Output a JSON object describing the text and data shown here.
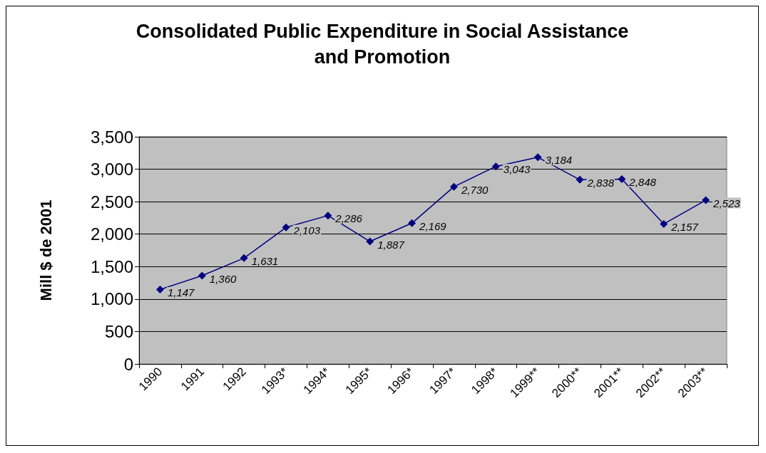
{
  "chart_data": {
    "type": "line",
    "title": "Consolidated Public Expenditure in Social Assistance\nand Promotion",
    "ylabel": "Mill $ de 2001",
    "categories": [
      "1990",
      "1991",
      "1992",
      "1993*",
      "1994*",
      "1995*",
      "1996*",
      "1997*",
      "1998*",
      "1999**",
      "2000**",
      "2001**",
      "2002**",
      "2003**"
    ],
    "series": [
      {
        "color": "#000080",
        "values": [
          1147,
          1360,
          1631,
          2103,
          2286,
          1887,
          2169,
          2730,
          3043,
          3184,
          2838,
          2848,
          2157,
          2523
        ],
        "value_labels": [
          "1,147",
          "1,360",
          "1,631",
          "2,103",
          "2,286",
          "1,887",
          "2,169",
          "2,730",
          "3,043",
          "3,184",
          "2,838",
          "2,848",
          "2,157",
          "2,523"
        ]
      }
    ],
    "ylim": [
      0,
      3500
    ],
    "yticks": [
      0,
      {
        "value": 500,
        "label": "500"
      },
      {
        "value": 1000,
        "label": "1,000"
      },
      {
        "value": 1500,
        "label": "1,500"
      },
      {
        "value": 2000,
        "label": "2,000"
      },
      {
        "value": 2500,
        "label": "2,500"
      },
      {
        "value": 3000,
        "label": "3,000"
      },
      {
        "value": 3500,
        "label": "3,500"
      }
    ],
    "grid": "y",
    "marker": "diamond",
    "line_style": "solid"
  }
}
